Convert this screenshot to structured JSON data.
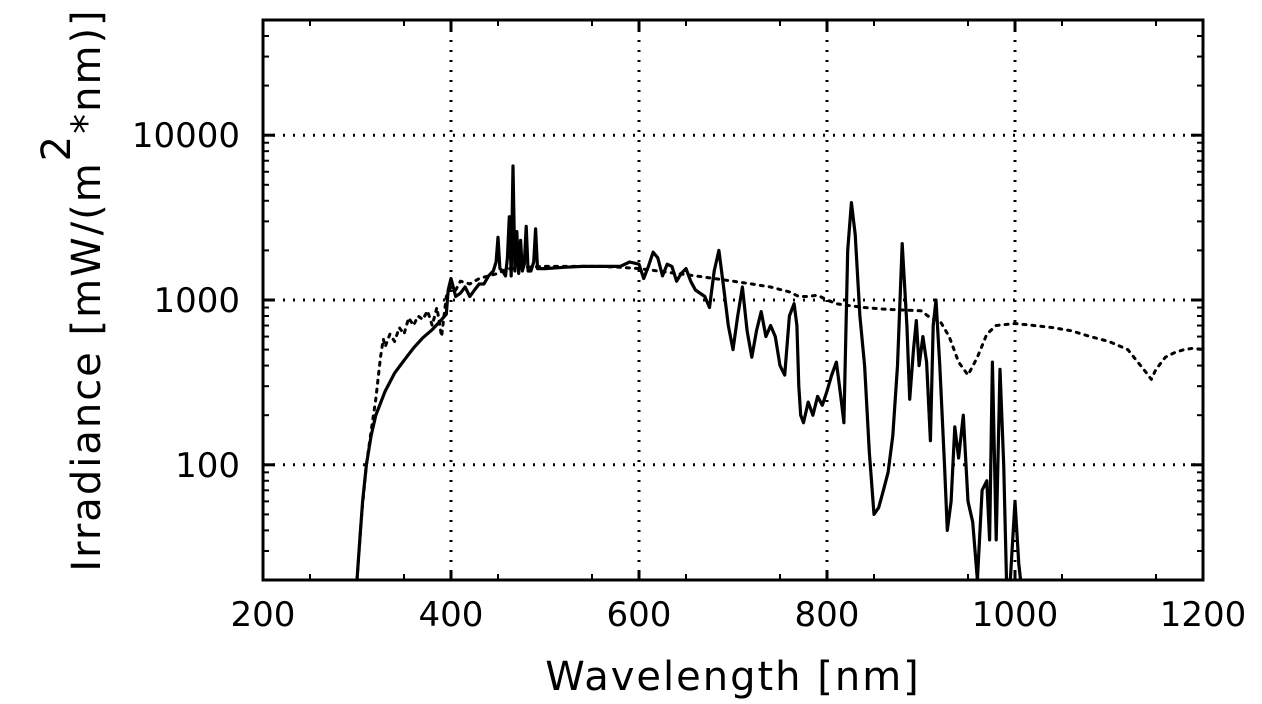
{
  "chart_data": {
    "type": "line",
    "title": "",
    "xlabel": "Wavelength [nm]",
    "ylabel_parts": [
      "Irradiance [mW/(m",
      "2",
      "*nm)]"
    ],
    "xlim": [
      200,
      1200
    ],
    "ylim": [
      20,
      50000
    ],
    "yscale": "log",
    "grid": true,
    "legend": "none",
    "x_ticks": [
      200,
      400,
      600,
      800,
      1000,
      1200
    ],
    "y_ticks": [
      100,
      1000,
      10000
    ],
    "x_tick_labels": [
      "200",
      "400",
      "600",
      "800",
      "1000",
      "1200"
    ],
    "y_tick_labels": [
      "100",
      "1000",
      "10000"
    ],
    "series": [
      {
        "style": "solid",
        "points": [
          [
            300,
            20
          ],
          [
            303,
            35
          ],
          [
            306,
            60
          ],
          [
            310,
            100
          ],
          [
            315,
            150
          ],
          [
            320,
            200
          ],
          [
            330,
            280
          ],
          [
            340,
            360
          ],
          [
            350,
            430
          ],
          [
            360,
            510
          ],
          [
            370,
            590
          ],
          [
            380,
            660
          ],
          [
            390,
            760
          ],
          [
            395,
            820
          ],
          [
            397,
            1150
          ],
          [
            400,
            1350
          ],
          [
            405,
            1050
          ],
          [
            410,
            1100
          ],
          [
            415,
            1200
          ],
          [
            420,
            1050
          ],
          [
            425,
            1150
          ],
          [
            430,
            1250
          ],
          [
            435,
            1250
          ],
          [
            440,
            1400
          ],
          [
            445,
            1500
          ],
          [
            448,
            1700
          ],
          [
            450,
            2400
          ],
          [
            452,
            1550
          ],
          [
            455,
            1500
          ],
          [
            458,
            1400
          ],
          [
            460,
            1800
          ],
          [
            462,
            3200
          ],
          [
            464,
            1400
          ],
          [
            466,
            6500
          ],
          [
            468,
            1500
          ],
          [
            470,
            2600
          ],
          [
            472,
            1450
          ],
          [
            474,
            2300
          ],
          [
            476,
            1500
          ],
          [
            478,
            1650
          ],
          [
            480,
            2800
          ],
          [
            482,
            1500
          ],
          [
            485,
            1500
          ],
          [
            488,
            1700
          ],
          [
            490,
            2700
          ],
          [
            492,
            1550
          ],
          [
            495,
            1550
          ],
          [
            500,
            1550
          ],
          [
            520,
            1580
          ],
          [
            540,
            1600
          ],
          [
            560,
            1600
          ],
          [
            580,
            1600
          ],
          [
            590,
            1700
          ],
          [
            600,
            1650
          ],
          [
            605,
            1350
          ],
          [
            610,
            1600
          ],
          [
            615,
            1950
          ],
          [
            620,
            1800
          ],
          [
            625,
            1400
          ],
          [
            630,
            1650
          ],
          [
            635,
            1600
          ],
          [
            640,
            1300
          ],
          [
            645,
            1450
          ],
          [
            650,
            1550
          ],
          [
            655,
            1300
          ],
          [
            660,
            1150
          ],
          [
            670,
            1050
          ],
          [
            675,
            900
          ],
          [
            680,
            1500
          ],
          [
            685,
            2000
          ],
          [
            690,
            1200
          ],
          [
            695,
            700
          ],
          [
            700,
            500
          ],
          [
            705,
            800
          ],
          [
            710,
            1200
          ],
          [
            715,
            650
          ],
          [
            720,
            450
          ],
          [
            725,
            650
          ],
          [
            730,
            850
          ],
          [
            735,
            600
          ],
          [
            740,
            700
          ],
          [
            745,
            600
          ],
          [
            750,
            400
          ],
          [
            755,
            350
          ],
          [
            760,
            800
          ],
          [
            765,
            950
          ],
          [
            768,
            700
          ],
          [
            770,
            300
          ],
          [
            772,
            200
          ],
          [
            775,
            180
          ],
          [
            780,
            240
          ],
          [
            785,
            200
          ],
          [
            790,
            260
          ],
          [
            795,
            230
          ],
          [
            800,
            280
          ],
          [
            805,
            350
          ],
          [
            810,
            420
          ],
          [
            815,
            250
          ],
          [
            818,
            180
          ],
          [
            822,
            2000
          ],
          [
            826,
            3900
          ],
          [
            830,
            2500
          ],
          [
            835,
            800
          ],
          [
            840,
            400
          ],
          [
            845,
            120
          ],
          [
            850,
            50
          ],
          [
            855,
            55
          ],
          [
            860,
            70
          ],
          [
            865,
            90
          ],
          [
            870,
            150
          ],
          [
            875,
            400
          ],
          [
            880,
            2200
          ],
          [
            885,
            700
          ],
          [
            888,
            250
          ],
          [
            892,
            500
          ],
          [
            895,
            750
          ],
          [
            898,
            400
          ],
          [
            902,
            600
          ],
          [
            906,
            420
          ],
          [
            910,
            140
          ],
          [
            913,
            700
          ],
          [
            916,
            1000
          ],
          [
            920,
            400
          ],
          [
            925,
            100
          ],
          [
            928,
            40
          ],
          [
            932,
            60
          ],
          [
            936,
            170
          ],
          [
            940,
            110
          ],
          [
            945,
            200
          ],
          [
            950,
            60
          ],
          [
            955,
            45
          ],
          [
            960,
            20
          ],
          [
            965,
            70
          ],
          [
            970,
            80
          ],
          [
            973,
            35
          ],
          [
            976,
            420
          ],
          [
            980,
            35
          ],
          [
            984,
            380
          ],
          [
            988,
            100
          ],
          [
            991,
            20
          ],
          [
            995,
            20
          ],
          [
            1000,
            60
          ],
          [
            1004,
            25
          ],
          [
            1006,
            20
          ]
        ]
      },
      {
        "style": "dotted",
        "points": [
          [
            300,
            20
          ],
          [
            305,
            50
          ],
          [
            310,
            100
          ],
          [
            315,
            160
          ],
          [
            320,
            250
          ],
          [
            325,
            450
          ],
          [
            328,
            580
          ],
          [
            330,
            520
          ],
          [
            335,
            620
          ],
          [
            340,
            560
          ],
          [
            345,
            680
          ],
          [
            350,
            620
          ],
          [
            355,
            780
          ],
          [
            360,
            700
          ],
          [
            365,
            800
          ],
          [
            370,
            760
          ],
          [
            375,
            860
          ],
          [
            380,
            700
          ],
          [
            385,
            900
          ],
          [
            390,
            600
          ],
          [
            395,
            1050
          ],
          [
            400,
            1200
          ],
          [
            405,
            1150
          ],
          [
            410,
            1300
          ],
          [
            420,
            1250
          ],
          [
            430,
            1350
          ],
          [
            440,
            1400
          ],
          [
            450,
            1450
          ],
          [
            460,
            1550
          ],
          [
            470,
            1550
          ],
          [
            480,
            1580
          ],
          [
            500,
            1600
          ],
          [
            520,
            1600
          ],
          [
            540,
            1600
          ],
          [
            560,
            1600
          ],
          [
            580,
            1580
          ],
          [
            600,
            1550
          ],
          [
            620,
            1500
          ],
          [
            640,
            1450
          ],
          [
            660,
            1400
          ],
          [
            680,
            1350
          ],
          [
            700,
            1300
          ],
          [
            720,
            1250
          ],
          [
            740,
            1200
          ],
          [
            760,
            1120
          ],
          [
            770,
            1050
          ],
          [
            780,
            1050
          ],
          [
            790,
            1070
          ],
          [
            800,
            1000
          ],
          [
            810,
            950
          ],
          [
            820,
            930
          ],
          [
            840,
            900
          ],
          [
            860,
            880
          ],
          [
            880,
            870
          ],
          [
            900,
            860
          ],
          [
            910,
            780
          ],
          [
            920,
            750
          ],
          [
            930,
            600
          ],
          [
            940,
            420
          ],
          [
            950,
            350
          ],
          [
            960,
            450
          ],
          [
            970,
            620
          ],
          [
            980,
            700
          ],
          [
            1000,
            720
          ],
          [
            1020,
            700
          ],
          [
            1040,
            680
          ],
          [
            1060,
            650
          ],
          [
            1080,
            600
          ],
          [
            1100,
            560
          ],
          [
            1120,
            500
          ],
          [
            1140,
            360
          ],
          [
            1145,
            330
          ],
          [
            1150,
            380
          ],
          [
            1160,
            450
          ],
          [
            1170,
            480
          ],
          [
            1180,
            500
          ],
          [
            1190,
            510
          ],
          [
            1200,
            500
          ]
        ]
      }
    ]
  }
}
